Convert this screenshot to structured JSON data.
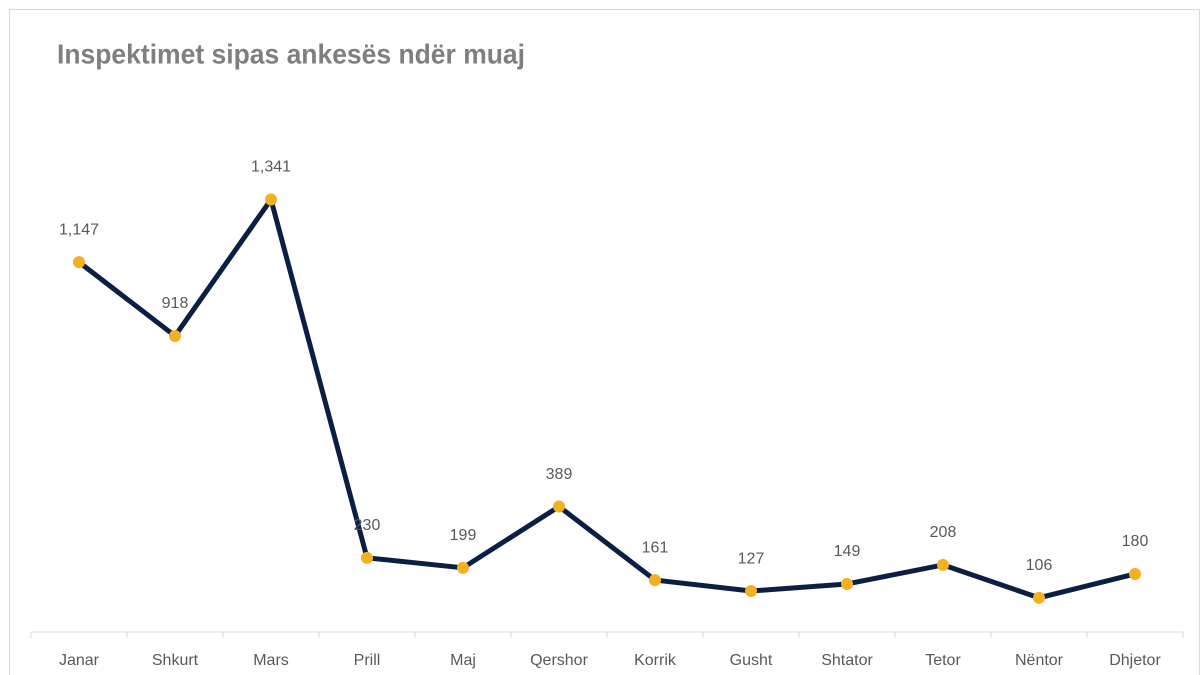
{
  "chart_data": {
    "type": "line",
    "title": "Inspektimet sipas ankesës ndër muaj",
    "categories": [
      "Janar",
      "Shkurt",
      "Mars",
      "Prill",
      "Maj",
      "Qershor",
      "Korrik",
      "Gusht",
      "Shtator",
      "Tetor",
      "Nëntor",
      "Dhjetor"
    ],
    "series": [
      {
        "name": "Inspektimet",
        "color": "#0b1f45",
        "marker_color": "#f5b021",
        "values": [
          1147,
          918,
          1341,
          230,
          199,
          389,
          161,
          127,
          149,
          208,
          106,
          180
        ],
        "value_labels": [
          "1,147",
          "918",
          "1,341",
          "230",
          "199",
          "389",
          "161",
          "127",
          "149",
          "208",
          "106",
          "180"
        ]
      }
    ],
    "ylim": [
      0,
      1600
    ]
  }
}
